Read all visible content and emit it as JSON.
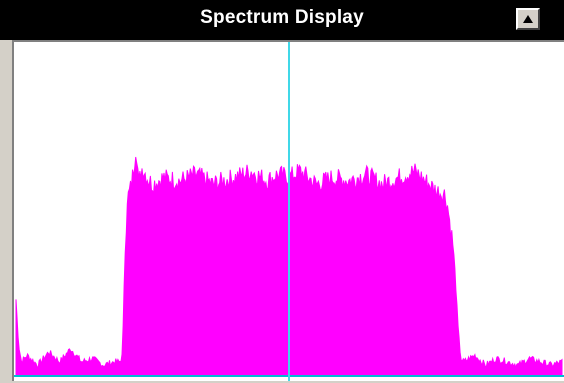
{
  "window": {
    "title": "Spectrum Display",
    "collapse_button_icon": "up-triangle-icon"
  },
  "colors": {
    "titlebar_bg": "#000000",
    "title_text": "#ffffff",
    "plot_bg": "#ffffff",
    "spectrum_fill": "#ff00ff",
    "center_marker": "#40d8e8",
    "baseline": "#00bcd4"
  },
  "chart_data": {
    "type": "area",
    "title": "",
    "xlabel": "",
    "ylabel": "",
    "xlim": [
      0,
      1
    ],
    "ylim": [
      0,
      1
    ],
    "center_marker_x": 0.5,
    "x": [
      0.0,
      0.005,
      0.01,
      0.02,
      0.04,
      0.06,
      0.08,
      0.1,
      0.12,
      0.14,
      0.16,
      0.18,
      0.19,
      0.195,
      0.2,
      0.205,
      0.21,
      0.215,
      0.22,
      0.225,
      0.23,
      0.235,
      0.24,
      0.25,
      0.27,
      0.3,
      0.33,
      0.36,
      0.4,
      0.43,
      0.46,
      0.48,
      0.5,
      0.52,
      0.55,
      0.58,
      0.61,
      0.64,
      0.67,
      0.7,
      0.73,
      0.75,
      0.77,
      0.785,
      0.79,
      0.795,
      0.8,
      0.805,
      0.81,
      0.815,
      0.82,
      0.84,
      0.86,
      0.88,
      0.9,
      0.92,
      0.94,
      0.96,
      0.98,
      1.0
    ],
    "y": [
      0.22,
      0.08,
      0.03,
      0.05,
      0.02,
      0.06,
      0.03,
      0.07,
      0.03,
      0.04,
      0.02,
      0.03,
      0.03,
      0.05,
      0.4,
      0.54,
      0.57,
      0.62,
      0.7,
      0.58,
      0.63,
      0.62,
      0.6,
      0.58,
      0.6,
      0.59,
      0.61,
      0.58,
      0.6,
      0.62,
      0.59,
      0.61,
      0.6,
      0.62,
      0.58,
      0.6,
      0.59,
      0.61,
      0.58,
      0.6,
      0.62,
      0.59,
      0.56,
      0.55,
      0.52,
      0.46,
      0.4,
      0.28,
      0.12,
      0.04,
      0.03,
      0.05,
      0.02,
      0.04,
      0.03,
      0.02,
      0.04,
      0.03,
      0.02,
      0.03
    ]
  }
}
